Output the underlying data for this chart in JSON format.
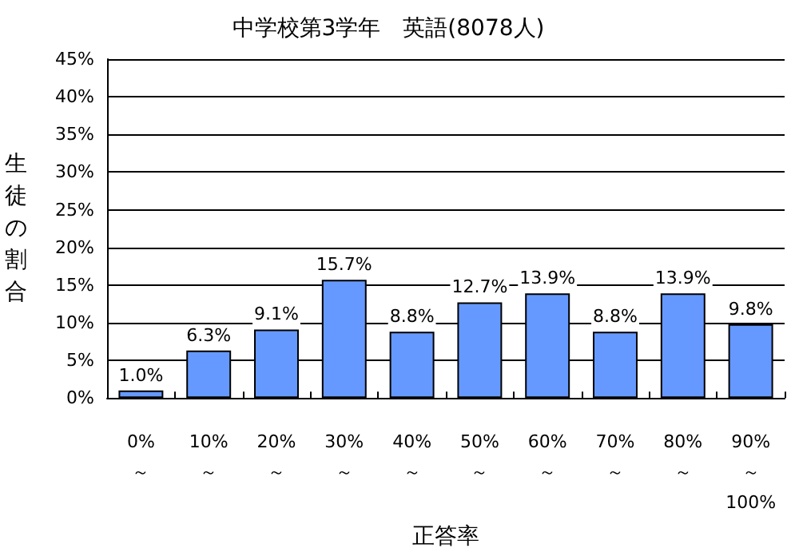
{
  "chart_data": {
    "type": "bar",
    "title": "中学校第3学年　英語(8078人)",
    "xlabel": "正答率",
    "ylabel": "生徒の割合",
    "categories": [
      "0%\n～",
      "10%\n～",
      "20%\n～",
      "30%\n～",
      "40%\n～",
      "50%\n～",
      "60%\n～",
      "70%\n～",
      "80%\n～",
      "90%\n～\n100%"
    ],
    "values": [
      1.0,
      6.3,
      9.1,
      15.7,
      8.8,
      12.7,
      13.9,
      8.8,
      13.9,
      9.8
    ],
    "value_labels": [
      "1.0%",
      "6.3%",
      "9.1%",
      "15.7%",
      "8.8%",
      "12.7%",
      "13.9%",
      "8.8%",
      "13.9%",
      "9.8%"
    ],
    "color": "#6699ff",
    "ylim": [
      0,
      45
    ],
    "yticks": [
      {
        "value": 0,
        "label": "0%"
      },
      {
        "value": 5,
        "label": "5%"
      },
      {
        "value": 10,
        "label": "10%"
      },
      {
        "value": 15,
        "label": "15%"
      },
      {
        "value": 20,
        "label": "20%"
      },
      {
        "value": 25,
        "label": "25%"
      },
      {
        "value": 30,
        "label": "30%"
      },
      {
        "value": 35,
        "label": "35%"
      },
      {
        "value": 40,
        "label": "40%"
      },
      {
        "value": 45,
        "label": "45%"
      }
    ],
    "grid": "y"
  }
}
